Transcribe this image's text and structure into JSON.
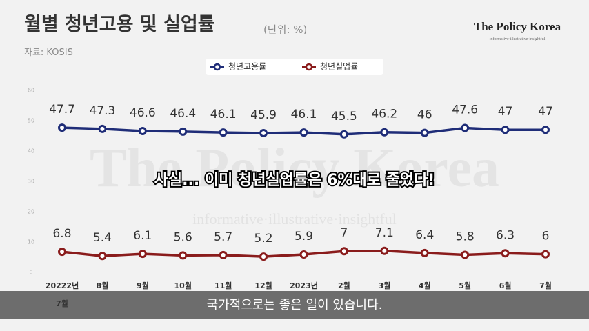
{
  "header": {
    "title": "월별 청년고용 및 실업률",
    "unit": "(단위: %)",
    "source": "자료: KOSIS"
  },
  "brand": {
    "name": "The Policy Korea",
    "tagline": "informative·illustrative·insightful"
  },
  "watermark": {
    "name": "The Policy Korea",
    "tagline": "informative·illustrative·insightful"
  },
  "chart_data": {
    "type": "line",
    "categories": [
      "20222년\n7월",
      "8월",
      "9월",
      "10월",
      "11월",
      "12월",
      "2023년",
      "2월",
      "3월",
      "4월",
      "5월",
      "6월",
      "7월"
    ],
    "series": [
      {
        "name": "청년고용률",
        "color": "#1f2d78",
        "values": [
          47.7,
          47.3,
          46.6,
          46.4,
          46.1,
          45.9,
          46.1,
          45.5,
          46.2,
          46,
          47.6,
          47,
          47
        ]
      },
      {
        "name": "청년실업률",
        "color": "#8a1c1c",
        "values": [
          6.8,
          5.4,
          6.1,
          5.6,
          5.7,
          5.2,
          5.9,
          7,
          7.1,
          6.4,
          5.8,
          6.3,
          6
        ]
      }
    ],
    "ylim": [
      0,
      60
    ],
    "yticks": [
      0,
      10,
      20,
      30,
      40,
      50,
      60
    ],
    "legend": "top"
  },
  "captions": [
    "사실... 이미 청년실업률은 6%대로 줄었다!",
    "국가적으로는 좋은 일이 있습니다."
  ]
}
